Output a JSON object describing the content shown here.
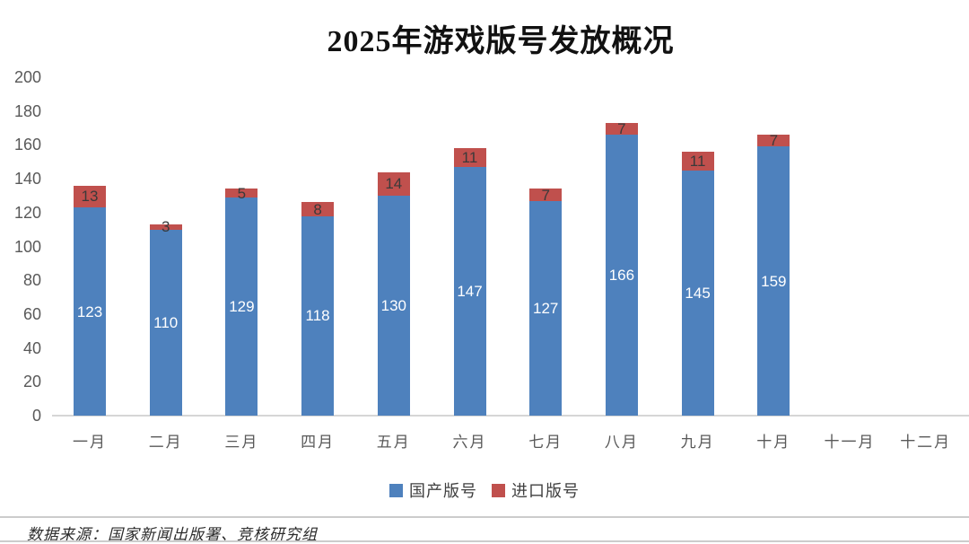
{
  "title": "2025年游戏版号发放概况",
  "chart_data": {
    "type": "bar",
    "stacked": true,
    "title": "2025年游戏版号发放概况",
    "categories": [
      "一月",
      "二月",
      "三月",
      "四月",
      "五月",
      "六月",
      "七月",
      "八月",
      "九月",
      "十月",
      "十一月",
      "十二月"
    ],
    "series": [
      {
        "name": "国产版号",
        "color": "#4e81bd",
        "values": [
          123,
          110,
          129,
          118,
          130,
          147,
          127,
          166,
          145,
          159,
          null,
          null
        ]
      },
      {
        "name": "进口版号",
        "color": "#c0504d",
        "values": [
          13,
          3,
          5,
          8,
          14,
          11,
          7,
          7,
          11,
          7,
          null,
          null
        ]
      }
    ],
    "totals": [
      136,
      113,
      134,
      126,
      144,
      158,
      134,
      173,
      156,
      166,
      null,
      null
    ],
    "ylim": [
      0,
      200
    ],
    "yticks": [
      0,
      20,
      40,
      60,
      80,
      100,
      120,
      140,
      160,
      180,
      200
    ],
    "xlabel": "",
    "ylabel": "",
    "grid": false,
    "legend_position": "bottom",
    "data_labels": true,
    "data_label_color_domestic": "#ffffff",
    "data_label_color_import": "#3a3a3a"
  },
  "footer": {
    "source_text": "数据来源：国家新闻出版署、竞核研究组"
  },
  "colors": {
    "domestic": "#4e81bd",
    "import": "#c0504d",
    "axis_text": "#595959",
    "baseline": "#d6d6d6",
    "background": "#ffffff"
  }
}
